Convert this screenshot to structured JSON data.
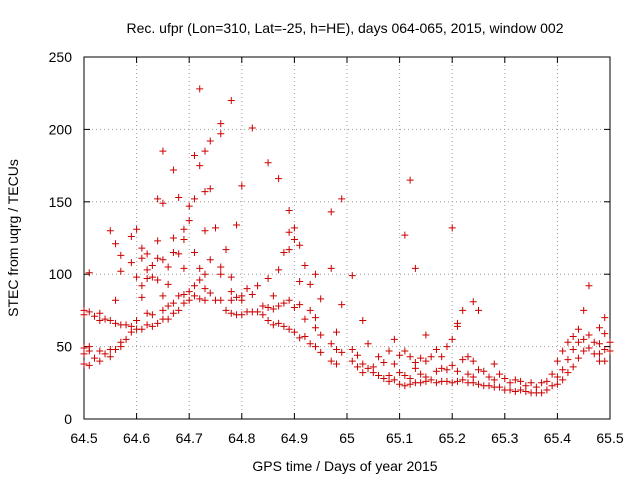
{
  "chart_data": {
    "type": "scatter",
    "title": "Rec. ufpr (Lon=310, Lat=-25, h=HE), days 064-065, 2015, window 002",
    "xlabel": "GPS time / Days of year 2015",
    "ylabel": "STEC from uqrg / TECUs",
    "xlim": [
      64.5,
      65.5
    ],
    "ylim": [
      0,
      250
    ],
    "xticks": [
      "64.5",
      "64.6",
      "64.7",
      "64.8",
      "64.9",
      "65",
      "65.1",
      "65.2",
      "65.3",
      "65.4",
      "65.5"
    ],
    "yticks": [
      "0",
      "50",
      "100",
      "150",
      "200",
      "250"
    ],
    "grid": true,
    "marker": "+",
    "color": "#cc0000",
    "series": [
      {
        "name": "STEC",
        "points": [
          [
            64.5,
            75
          ],
          [
            64.5,
            72
          ],
          [
            64.5,
            49
          ],
          [
            64.5,
            45
          ],
          [
            64.5,
            38
          ],
          [
            64.51,
            101
          ],
          [
            64.51,
            74
          ],
          [
            64.51,
            50
          ],
          [
            64.51,
            47
          ],
          [
            64.51,
            37
          ],
          [
            64.52,
            71
          ],
          [
            64.52,
            42
          ],
          [
            64.53,
            73
          ],
          [
            64.53,
            68
          ],
          [
            64.53,
            47
          ],
          [
            64.53,
            40
          ],
          [
            64.54,
            69
          ],
          [
            64.54,
            45
          ],
          [
            64.55,
            130
          ],
          [
            64.55,
            68
          ],
          [
            64.55,
            48
          ],
          [
            64.55,
            43
          ],
          [
            64.56,
            121
          ],
          [
            64.56,
            82
          ],
          [
            64.56,
            66
          ],
          [
            64.56,
            48
          ],
          [
            64.57,
            113
          ],
          [
            64.57,
            102
          ],
          [
            64.57,
            65
          ],
          [
            64.57,
            53
          ],
          [
            64.57,
            50
          ],
          [
            64.58,
            65
          ],
          [
            64.58,
            55
          ],
          [
            64.59,
            126
          ],
          [
            64.59,
            108
          ],
          [
            64.59,
            64
          ],
          [
            64.59,
            60
          ],
          [
            64.6,
            131
          ],
          [
            64.6,
            98
          ],
          [
            64.6,
            68
          ],
          [
            64.6,
            62
          ],
          [
            64.61,
            118
          ],
          [
            64.61,
            111
          ],
          [
            64.61,
            92
          ],
          [
            64.61,
            84
          ],
          [
            64.61,
            62
          ],
          [
            64.62,
            114
          ],
          [
            64.62,
            103
          ],
          [
            64.62,
            97
          ],
          [
            64.62,
            73
          ],
          [
            64.62,
            65
          ],
          [
            64.63,
            106
          ],
          [
            64.63,
            98
          ],
          [
            64.63,
            72
          ],
          [
            64.63,
            64
          ],
          [
            64.64,
            152
          ],
          [
            64.64,
            123
          ],
          [
            64.64,
            111
          ],
          [
            64.64,
            96
          ],
          [
            64.64,
            66
          ],
          [
            64.65,
            185
          ],
          [
            64.65,
            149
          ],
          [
            64.65,
            110
          ],
          [
            64.65,
            85
          ],
          [
            64.65,
            75
          ],
          [
            64.65,
            69
          ],
          [
            64.66,
            105
          ],
          [
            64.66,
            93
          ],
          [
            64.66,
            78
          ],
          [
            64.66,
            69
          ],
          [
            64.67,
            172
          ],
          [
            64.67,
            125
          ],
          [
            64.67,
            115
          ],
          [
            64.67,
            80
          ],
          [
            64.67,
            73
          ],
          [
            64.68,
            153
          ],
          [
            64.68,
            114
          ],
          [
            64.68,
            85
          ],
          [
            64.68,
            75
          ],
          [
            64.69,
            131
          ],
          [
            64.69,
            124
          ],
          [
            64.69,
            104
          ],
          [
            64.69,
            86
          ],
          [
            64.69,
            80
          ],
          [
            64.7,
            147
          ],
          [
            64.7,
            137
          ],
          [
            64.7,
            88
          ],
          [
            64.7,
            82
          ],
          [
            64.71,
            182
          ],
          [
            64.71,
            152
          ],
          [
            64.71,
            115
          ],
          [
            64.71,
            92
          ],
          [
            64.71,
            85
          ],
          [
            64.72,
            228
          ],
          [
            64.72,
            175
          ],
          [
            64.72,
            104
          ],
          [
            64.72,
            96
          ],
          [
            64.72,
            83
          ],
          [
            64.73,
            185
          ],
          [
            64.73,
            157
          ],
          [
            64.73,
            130
          ],
          [
            64.73,
            100
          ],
          [
            64.73,
            90
          ],
          [
            64.73,
            82
          ],
          [
            64.74,
            192
          ],
          [
            64.74,
            159
          ],
          [
            64.74,
            110
          ],
          [
            64.74,
            87
          ],
          [
            64.75,
            132
          ],
          [
            64.75,
            82
          ],
          [
            64.76,
            197
          ],
          [
            64.76,
            204
          ],
          [
            64.76,
            105
          ],
          [
            64.76,
            100
          ],
          [
            64.76,
            82
          ],
          [
            64.77,
            117
          ],
          [
            64.77,
            75
          ],
          [
            64.78,
            220
          ],
          [
            64.78,
            98
          ],
          [
            64.78,
            88
          ],
          [
            64.78,
            82
          ],
          [
            64.78,
            73
          ],
          [
            64.79,
            134
          ],
          [
            64.79,
            84
          ],
          [
            64.79,
            72
          ],
          [
            64.8,
            161
          ],
          [
            64.8,
            85
          ],
          [
            64.8,
            82
          ],
          [
            64.8,
            72
          ],
          [
            64.81,
            90
          ],
          [
            64.81,
            74
          ],
          [
            64.82,
            201
          ],
          [
            64.82,
            86
          ],
          [
            64.82,
            74
          ],
          [
            64.83,
            92
          ],
          [
            64.83,
            74
          ],
          [
            64.84,
            78
          ],
          [
            64.84,
            72
          ],
          [
            64.85,
            177
          ],
          [
            64.85,
            97
          ],
          [
            64.85,
            77
          ],
          [
            64.85,
            68
          ],
          [
            64.86,
            85
          ],
          [
            64.86,
            76
          ],
          [
            64.86,
            65
          ],
          [
            64.87,
            166
          ],
          [
            64.87,
            103
          ],
          [
            64.87,
            78
          ],
          [
            64.87,
            66
          ],
          [
            64.88,
            115
          ],
          [
            64.88,
            80
          ],
          [
            64.88,
            64
          ],
          [
            64.89,
            144
          ],
          [
            64.89,
            129
          ],
          [
            64.89,
            117
          ],
          [
            64.89,
            82
          ],
          [
            64.89,
            62
          ],
          [
            64.9,
            132
          ],
          [
            64.9,
            124
          ],
          [
            64.9,
            77
          ],
          [
            64.9,
            60
          ],
          [
            64.91,
            120
          ],
          [
            64.91,
            95
          ],
          [
            64.91,
            79
          ],
          [
            64.91,
            56
          ],
          [
            64.92,
            106
          ],
          [
            64.92,
            69
          ],
          [
            64.92,
            57
          ],
          [
            64.93,
            93
          ],
          [
            64.93,
            75
          ],
          [
            64.93,
            52
          ],
          [
            64.94,
            100
          ],
          [
            64.94,
            70
          ],
          [
            64.94,
            63
          ],
          [
            64.94,
            50
          ],
          [
            64.95,
            83
          ],
          [
            64.95,
            58
          ],
          [
            64.95,
            46
          ],
          [
            64.97,
            143
          ],
          [
            64.97,
            104
          ],
          [
            64.97,
            52
          ],
          [
            64.97,
            40
          ],
          [
            64.98,
            60
          ],
          [
            64.98,
            48
          ],
          [
            64.98,
            38
          ],
          [
            64.99,
            152
          ],
          [
            64.99,
            79
          ],
          [
            64.99,
            46
          ],
          [
            65.01,
            99
          ],
          [
            65.01,
            48
          ],
          [
            65.01,
            40
          ],
          [
            65.02,
            44
          ],
          [
            65.02,
            36
          ],
          [
            65.03,
            68
          ],
          [
            65.03,
            38
          ],
          [
            65.03,
            32
          ],
          [
            65.04,
            52
          ],
          [
            65.04,
            35
          ],
          [
            65.05,
            36
          ],
          [
            65.05,
            32
          ],
          [
            65.06,
            43
          ],
          [
            65.06,
            30
          ],
          [
            65.07,
            39
          ],
          [
            65.07,
            28
          ],
          [
            65.08,
            47
          ],
          [
            65.08,
            30
          ],
          [
            65.08,
            26
          ],
          [
            65.09,
            55
          ],
          [
            65.09,
            38
          ],
          [
            65.09,
            27
          ],
          [
            65.1,
            44
          ],
          [
            65.1,
            32
          ],
          [
            65.1,
            24
          ],
          [
            65.11,
            127
          ],
          [
            65.11,
            47
          ],
          [
            65.11,
            30
          ],
          [
            65.11,
            23
          ],
          [
            65.12,
            165
          ],
          [
            65.12,
            43
          ],
          [
            65.12,
            28
          ],
          [
            65.12,
            24
          ],
          [
            65.13,
            104
          ],
          [
            65.13,
            39
          ],
          [
            65.13,
            35
          ],
          [
            65.13,
            25
          ],
          [
            65.14,
            42
          ],
          [
            65.14,
            31
          ],
          [
            65.14,
            25
          ],
          [
            65.15,
            58
          ],
          [
            65.15,
            40
          ],
          [
            65.15,
            29
          ],
          [
            65.15,
            26
          ],
          [
            65.16,
            43
          ],
          [
            65.16,
            27
          ],
          [
            65.17,
            48
          ],
          [
            65.17,
            33
          ],
          [
            65.17,
            25
          ],
          [
            65.18,
            43
          ],
          [
            65.18,
            35
          ],
          [
            65.18,
            26
          ],
          [
            65.19,
            50
          ],
          [
            65.19,
            34
          ],
          [
            65.19,
            26
          ],
          [
            65.2,
            132
          ],
          [
            65.2,
            55
          ],
          [
            65.2,
            37
          ],
          [
            65.2,
            25
          ],
          [
            65.21,
            66
          ],
          [
            65.21,
            64
          ],
          [
            65.21,
            33
          ],
          [
            65.21,
            26
          ],
          [
            65.22,
            75
          ],
          [
            65.22,
            41
          ],
          [
            65.22,
            27
          ],
          [
            65.23,
            43
          ],
          [
            65.23,
            31
          ],
          [
            65.23,
            25
          ],
          [
            65.24,
            81
          ],
          [
            65.24,
            40
          ],
          [
            65.24,
            29
          ],
          [
            65.24,
            25
          ],
          [
            65.25,
            75
          ],
          [
            65.25,
            34
          ],
          [
            65.25,
            24
          ],
          [
            65.26,
            33
          ],
          [
            65.26,
            23
          ],
          [
            65.27,
            29
          ],
          [
            65.27,
            23
          ],
          [
            65.28,
            38
          ],
          [
            65.28,
            27
          ],
          [
            65.28,
            22
          ],
          [
            65.29,
            31
          ],
          [
            65.29,
            22
          ],
          [
            65.3,
            28
          ],
          [
            65.3,
            20
          ],
          [
            65.31,
            25
          ],
          [
            65.31,
            20
          ],
          [
            65.32,
            27
          ],
          [
            65.32,
            19
          ],
          [
            65.33,
            26
          ],
          [
            65.33,
            20
          ],
          [
            65.34,
            23
          ],
          [
            65.34,
            19
          ],
          [
            65.35,
            25
          ],
          [
            65.35,
            18
          ],
          [
            65.36,
            22
          ],
          [
            65.36,
            18
          ],
          [
            65.37,
            25
          ],
          [
            65.37,
            18
          ],
          [
            65.38,
            26
          ],
          [
            65.38,
            20
          ],
          [
            65.39,
            31
          ],
          [
            65.39,
            23
          ],
          [
            65.4,
            40
          ],
          [
            65.4,
            29
          ],
          [
            65.4,
            24
          ],
          [
            65.41,
            47
          ],
          [
            65.41,
            34
          ],
          [
            65.41,
            27
          ],
          [
            65.42,
            53
          ],
          [
            65.42,
            41
          ],
          [
            65.42,
            32
          ],
          [
            65.43,
            57
          ],
          [
            65.43,
            48
          ],
          [
            65.43,
            36
          ],
          [
            65.44,
            62
          ],
          [
            65.44,
            53
          ],
          [
            65.44,
            42
          ],
          [
            65.45,
            75
          ],
          [
            65.45,
            55
          ],
          [
            65.45,
            47
          ],
          [
            65.46,
            92
          ],
          [
            65.46,
            58
          ],
          [
            65.46,
            49
          ],
          [
            65.47,
            53
          ],
          [
            65.47,
            45
          ],
          [
            65.48,
            63
          ],
          [
            65.48,
            52
          ],
          [
            65.48,
            45
          ],
          [
            65.48,
            40
          ],
          [
            65.49,
            70
          ],
          [
            65.49,
            59
          ],
          [
            65.49,
            48
          ],
          [
            65.49,
            40
          ],
          [
            65.5,
            53
          ],
          [
            65.5,
            47
          ]
        ]
      }
    ]
  }
}
